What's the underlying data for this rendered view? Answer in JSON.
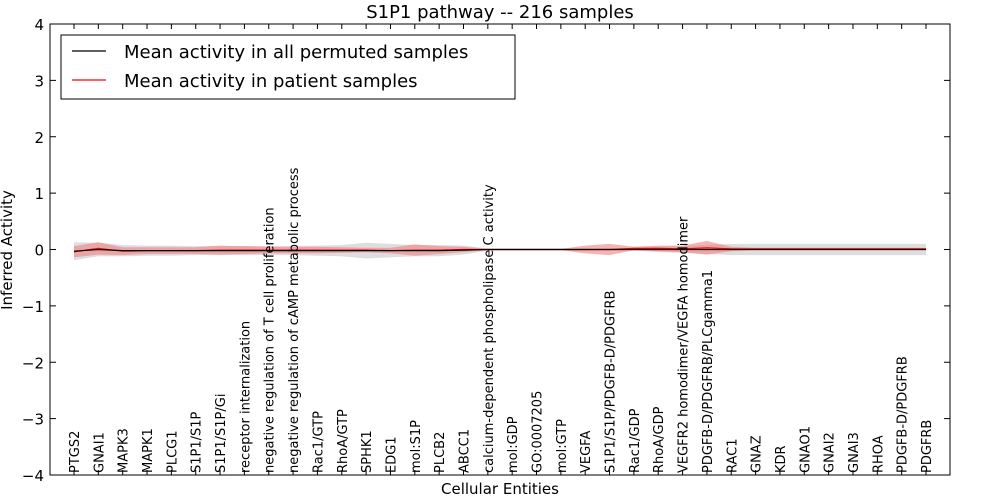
{
  "chart_data": {
    "type": "line",
    "title": "S1P1 pathway -- 216 samples",
    "xlabel": "Cellular Entities",
    "ylabel": "Inferred Activity",
    "ylim": [
      -4,
      4
    ],
    "yticks": [
      "−4",
      "−3",
      "−2",
      "−1",
      "0",
      "1",
      "2",
      "3",
      "4"
    ],
    "legend_position": "top-left",
    "categories": [
      "PTGS2",
      "GNAI1",
      "MAPK3",
      "MAPK1",
      "PLCG1",
      "S1P1/S1P",
      "S1P1/S1P/Gi",
      "receptor internalization",
      "negative regulation of T cell proliferation",
      "negative regulation of cAMP metabolic process",
      "Rac1/GTP",
      "RhoA/GTP",
      "SPHK1",
      "EDG1",
      "mol:S1P",
      "PLCB2",
      "ABCC1",
      "calcium-dependent phospholipase C activity",
      "mol:GDP",
      "GO:0007205",
      "mol:GTP",
      "VEGFA",
      "S1P1/S1P/PDGFB-D/PDGFRB",
      "Rac1/GDP",
      "RhoA/GDP",
      "VEGFR2 homodimer/VEGFA homodimer",
      "PDGFB-D/PDGFRB/PLCgamma1",
      "RAC1",
      "GNAZ",
      "KDR",
      "GNAO1",
      "GNAI2",
      "GNAI3",
      "RHOA",
      "PDGFB-D/PDGFRB",
      "PDGFRB"
    ],
    "series": [
      {
        "name": "Mean activity in all permuted samples",
        "color": "#000000",
        "band_color": "#c8c8c8",
        "values": [
          -0.03,
          0.0,
          -0.02,
          -0.02,
          -0.02,
          -0.02,
          -0.02,
          -0.02,
          -0.02,
          -0.02,
          -0.02,
          -0.02,
          -0.02,
          -0.02,
          -0.02,
          -0.02,
          -0.01,
          0.0,
          0.0,
          0.0,
          0.0,
          0.0,
          0.0,
          0.0,
          0.0,
          0.0,
          0.0,
          0.0,
          0.0,
          0.0,
          0.0,
          0.0,
          0.0,
          0.0,
          0.0,
          0.0
        ],
        "band": [
          0.16,
          0.12,
          0.1,
          0.09,
          0.09,
          0.08,
          0.08,
          0.08,
          0.08,
          0.08,
          0.09,
          0.1,
          0.14,
          0.12,
          0.1,
          0.1,
          0.08,
          0.02,
          0.02,
          0.02,
          0.02,
          0.02,
          0.02,
          0.02,
          0.05,
          0.06,
          0.08,
          0.1,
          0.1,
          0.1,
          0.1,
          0.1,
          0.1,
          0.1,
          0.1,
          0.1
        ]
      },
      {
        "name": "Mean activity in patient samples",
        "color": "#ff0000",
        "band_color": "#f08080",
        "values": [
          -0.04,
          0.02,
          -0.03,
          -0.02,
          -0.02,
          -0.02,
          -0.01,
          -0.01,
          -0.01,
          -0.01,
          -0.01,
          -0.01,
          -0.01,
          -0.02,
          -0.01,
          -0.01,
          0.0,
          0.0,
          0.0,
          0.0,
          0.0,
          0.0,
          0.0,
          0.02,
          0.02,
          0.01,
          0.03,
          0.01,
          0.01,
          0.01,
          0.01,
          0.01,
          0.01,
          0.01,
          0.01,
          0.01
        ],
        "band": [
          0.1,
          0.11,
          0.07,
          0.06,
          0.06,
          0.06,
          0.08,
          0.07,
          0.06,
          0.06,
          0.06,
          0.05,
          0.04,
          0.05,
          0.1,
          0.07,
          0.05,
          0.01,
          0.01,
          0.01,
          0.01,
          0.07,
          0.1,
          0.03,
          0.05,
          0.06,
          0.12,
          0.04,
          0.02,
          0.02,
          0.02,
          0.02,
          0.02,
          0.02,
          0.02,
          0.02
        ]
      }
    ]
  }
}
